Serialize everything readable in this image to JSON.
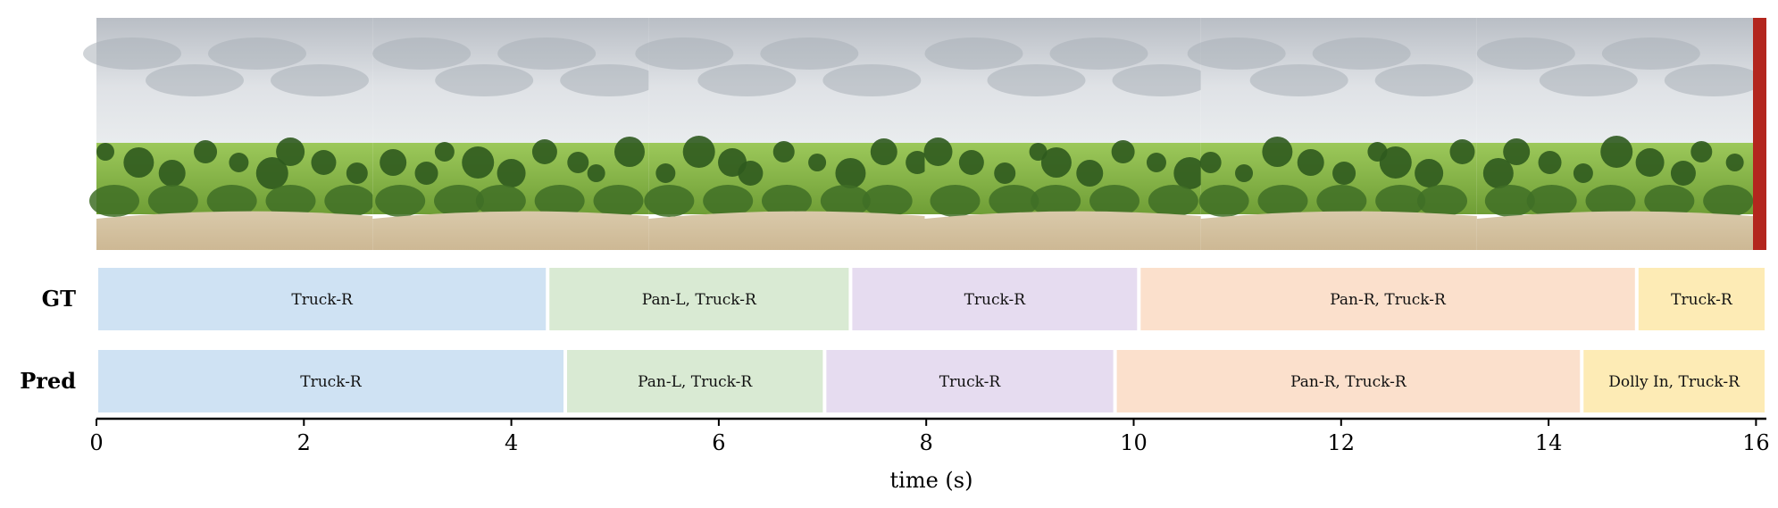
{
  "chart_data": {
    "type": "timeline",
    "xlabel": "time (s)",
    "xlim": [
      0,
      16.1
    ],
    "xticks": [
      0,
      2,
      4,
      6,
      8,
      10,
      12,
      14,
      16
    ],
    "rows": [
      {
        "label": "GT",
        "segments": [
          {
            "start": 0.0,
            "end": 4.35,
            "label": "Truck-R",
            "color": "#cfe2f3"
          },
          {
            "start": 4.35,
            "end": 7.27,
            "label": "Pan-L, Truck-R",
            "color": "#d9ead3"
          },
          {
            "start": 7.27,
            "end": 10.05,
            "label": "Truck-R",
            "color": "#e6dcf0"
          },
          {
            "start": 10.05,
            "end": 14.85,
            "label": "Pan-R, Truck-R",
            "color": "#fbe0cc"
          },
          {
            "start": 14.85,
            "end": 16.1,
            "label": "Truck-R",
            "color": "#fdebb5"
          }
        ]
      },
      {
        "label": "Pred",
        "segments": [
          {
            "start": 0.0,
            "end": 4.52,
            "label": "Truck-R",
            "color": "#cfe2f3"
          },
          {
            "start": 4.52,
            "end": 7.02,
            "label": "Pan-L, Truck-R",
            "color": "#d9ead3"
          },
          {
            "start": 7.02,
            "end": 9.82,
            "label": "Truck-R",
            "color": "#e6dcf0"
          },
          {
            "start": 9.82,
            "end": 14.32,
            "label": "Pan-R, Truck-R",
            "color": "#fbe0cc"
          },
          {
            "start": 14.32,
            "end": 16.1,
            "label": "Dolly In, Truck-R",
            "color": "#fdebb5"
          }
        ]
      }
    ],
    "filmstrip": {
      "frames": 6,
      "description_colors": {
        "sky": "#c9cdd2",
        "field": "#8fbf4a",
        "dirt": "#d8c7a8",
        "trees": "#2f5a1e"
      }
    }
  }
}
